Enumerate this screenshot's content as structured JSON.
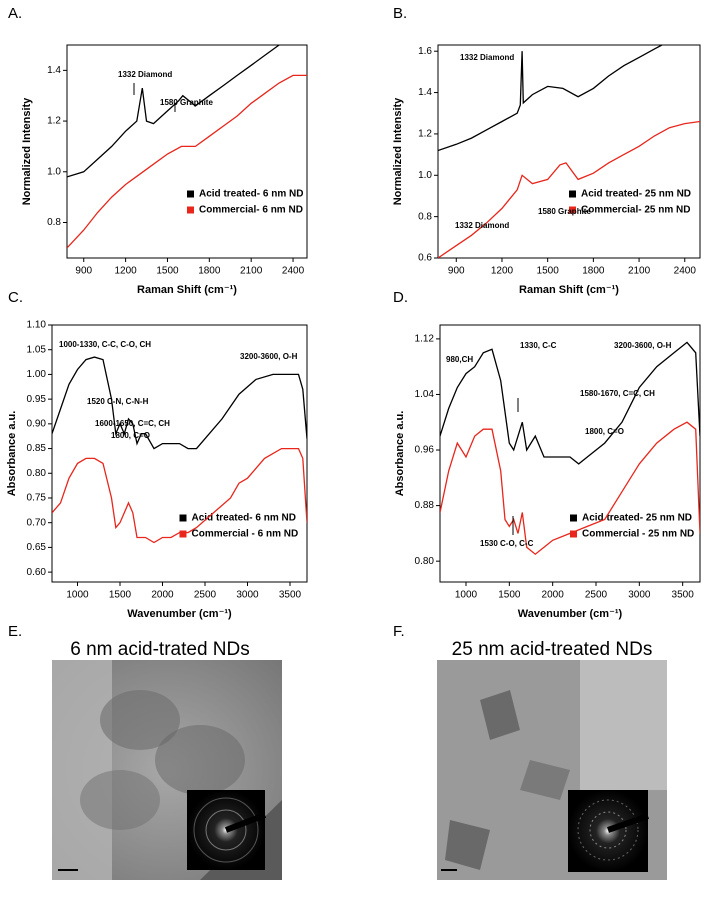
{
  "chart_data": [
    {
      "type": "line",
      "label": "A.",
      "xlabel": "Raman Shift (cm⁻¹)",
      "ylabel": "Normalized Intensity",
      "xlim": [
        780,
        2500
      ],
      "xticks": [
        900,
        1200,
        1500,
        1800,
        2100,
        2400
      ],
      "ylim": [
        0.66,
        1.5
      ],
      "yticks": [
        {
          "value": 0.8,
          "label": "0.8"
        },
        {
          "value": 1.0,
          "label": "1.0"
        },
        1.2,
        1.4
      ],
      "annotations": [
        "1332 Diamond",
        "1580 Graphite"
      ],
      "series": [
        {
          "name": "Acid treated- 6 nm ND",
          "color": "#000000",
          "x": [
            780,
            900,
            1000,
            1100,
            1200,
            1280,
            1320,
            1350,
            1400,
            1500,
            1580,
            1610,
            1700,
            1800,
            1900,
            2000,
            2100,
            2200,
            2300
          ],
          "values": [
            0.98,
            1.0,
            1.05,
            1.1,
            1.16,
            1.2,
            1.33,
            1.2,
            1.19,
            1.24,
            1.28,
            1.3,
            1.26,
            1.3,
            1.34,
            1.38,
            1.42,
            1.46,
            1.5
          ]
        },
        {
          "name": "Commercial- 6 nm ND",
          "color": "#e8261c",
          "x": [
            780,
            900,
            1000,
            1100,
            1200,
            1300,
            1400,
            1500,
            1600,
            1700,
            1800,
            1900,
            2000,
            2100,
            2200,
            2300,
            2400,
            2500
          ],
          "values": [
            0.7,
            0.77,
            0.84,
            0.9,
            0.95,
            0.99,
            1.03,
            1.07,
            1.1,
            1.1,
            1.14,
            1.18,
            1.22,
            1.27,
            1.31,
            1.35,
            1.38,
            1.38
          ]
        }
      ]
    },
    {
      "type": "line",
      "label": "B.",
      "xlabel": "Raman Shift (cm⁻¹)",
      "ylabel": "Normalized Intensity",
      "xlim": [
        780,
        2500
      ],
      "xticks": [
        900,
        1200,
        1500,
        1800,
        2100,
        2400
      ],
      "ylim": [
        0.6,
        1.63
      ],
      "yticks": [
        0.6,
        0.8,
        {
          "value": 1.0,
          "label": "1.0"
        },
        1.2,
        1.4,
        1.6
      ],
      "annotations": [
        "1332 Diamond",
        "1332 Diamond",
        "1580 Graphite"
      ],
      "series": [
        {
          "name": "Acid treated- 25 nm  ND",
          "color": "#000000",
          "x": [
            780,
            900,
            1000,
            1100,
            1200,
            1300,
            1320,
            1332,
            1340,
            1400,
            1500,
            1600,
            1700,
            1800,
            1900,
            2000,
            2100,
            2200,
            2250
          ],
          "values": [
            1.12,
            1.15,
            1.18,
            1.22,
            1.26,
            1.3,
            1.34,
            1.6,
            1.35,
            1.39,
            1.43,
            1.42,
            1.38,
            1.42,
            1.48,
            1.53,
            1.57,
            1.61,
            1.63
          ]
        },
        {
          "name": "Commercial- 25 nm  ND",
          "color": "#e8261c",
          "x": [
            780,
            900,
            1000,
            1100,
            1200,
            1300,
            1332,
            1400,
            1500,
            1580,
            1620,
            1700,
            1800,
            1900,
            2000,
            2100,
            2200,
            2300,
            2400,
            2500
          ],
          "values": [
            0.6,
            0.66,
            0.71,
            0.77,
            0.84,
            0.93,
            1.0,
            0.96,
            0.98,
            1.05,
            1.06,
            0.98,
            1.01,
            1.06,
            1.1,
            1.14,
            1.19,
            1.23,
            1.25,
            1.26
          ]
        }
      ]
    },
    {
      "type": "line",
      "label": "C.",
      "xlabel": "Wavenumber (cm⁻¹)",
      "ylabel": "Absorbance a.u.",
      "xlim": [
        700,
        3700
      ],
      "xticks": [
        1000,
        1500,
        2000,
        2500,
        3000,
        3500
      ],
      "ylim": [
        0.58,
        1.1
      ],
      "yticks": [
        {
          "value": 0.6,
          "label": "0.60"
        },
        0.65,
        {
          "value": 0.7,
          "label": "0.70"
        },
        0.75,
        {
          "value": 0.8,
          "label": "0.80"
        },
        0.85,
        {
          "value": 0.9,
          "label": "0.90"
        },
        0.95,
        {
          "value": 1.0,
          "label": "1.00"
        },
        1.05,
        {
          "value": 1.1,
          "label": "1.10"
        }
      ],
      "annotations": [
        "1000-1330, C-C, C-O, CH",
        "3200-3600, O-H",
        "1520 C-N, C-N-H",
        "1600-1650, C=C, CH",
        "1800, C=O"
      ],
      "series": [
        {
          "name": "Acid treated- 6 nm ND",
          "color": "#000000",
          "x": [
            700,
            800,
            900,
            1000,
            1100,
            1200,
            1300,
            1400,
            1450,
            1500,
            1550,
            1600,
            1650,
            1700,
            1750,
            1800,
            1900,
            2000,
            2100,
            2200,
            2300,
            2400,
            2500,
            2700,
            2900,
            3100,
            3300,
            3500,
            3600,
            3650,
            3700
          ],
          "values": [
            0.88,
            0.93,
            0.98,
            1.01,
            1.03,
            1.035,
            1.03,
            0.95,
            0.88,
            0.9,
            0.88,
            0.91,
            0.9,
            0.86,
            0.88,
            0.88,
            0.85,
            0.86,
            0.86,
            0.86,
            0.85,
            0.85,
            0.87,
            0.91,
            0.96,
            0.99,
            1.0,
            1.0,
            1.0,
            0.97,
            0.87
          ]
        },
        {
          "name": "Commercial - 6 nm ND",
          "color": "#e8261c",
          "x": [
            700,
            800,
            900,
            1000,
            1100,
            1200,
            1300,
            1400,
            1450,
            1500,
            1550,
            1600,
            1650,
            1700,
            1800,
            1900,
            2000,
            2100,
            2200,
            2300,
            2400,
            2600,
            2800,
            2900,
            3000,
            3200,
            3400,
            3500,
            3600,
            3650,
            3700
          ],
          "values": [
            0.72,
            0.74,
            0.79,
            0.82,
            0.83,
            0.83,
            0.82,
            0.75,
            0.69,
            0.7,
            0.72,
            0.74,
            0.72,
            0.67,
            0.67,
            0.66,
            0.67,
            0.67,
            0.68,
            0.68,
            0.69,
            0.72,
            0.75,
            0.78,
            0.79,
            0.83,
            0.85,
            0.85,
            0.85,
            0.83,
            0.7
          ]
        }
      ]
    },
    {
      "type": "line",
      "label": "D.",
      "xlabel": "Wavenumber (cm⁻¹)",
      "ylabel": "Absorbance a.u.",
      "xlim": [
        700,
        3700
      ],
      "xticks": [
        1000,
        1500,
        2000,
        2500,
        3000,
        3500
      ],
      "ylim": [
        0.77,
        1.14
      ],
      "yticks": [
        {
          "value": 0.8,
          "label": "0.80"
        },
        0.88,
        0.96,
        1.04,
        1.12
      ],
      "annotations": [
        "980,CH",
        "1330, C-C",
        "1580-1670, C=C, CH",
        "1800, C=O",
        "3200-3600, O-H",
        "1530 C-O, C-C"
      ],
      "series": [
        {
          "name": "Acid treated- 25 nm ND",
          "color": "#000000",
          "x": [
            700,
            800,
            900,
            1000,
            1100,
            1200,
            1300,
            1400,
            1500,
            1550,
            1600,
            1650,
            1700,
            1800,
            1900,
            2000,
            2100,
            2200,
            2300,
            2400,
            2600,
            2800,
            3000,
            3200,
            3400,
            3550,
            3650,
            3700
          ],
          "values": [
            0.98,
            1.02,
            1.05,
            1.07,
            1.08,
            1.1,
            1.105,
            1.06,
            0.97,
            0.96,
            0.98,
            1.0,
            0.96,
            0.98,
            0.95,
            0.95,
            0.95,
            0.95,
            0.94,
            0.95,
            0.97,
            1.0,
            1.05,
            1.08,
            1.1,
            1.115,
            1.1,
            0.98
          ]
        },
        {
          "name": "Commercial - 25 nm ND",
          "color": "#e8261c",
          "x": [
            700,
            800,
            900,
            1000,
            1100,
            1200,
            1300,
            1400,
            1450,
            1500,
            1550,
            1600,
            1650,
            1700,
            1800,
            1900,
            2000,
            2200,
            2400,
            2600,
            2800,
            3000,
            3200,
            3400,
            3550,
            3650,
            3700
          ],
          "values": [
            0.87,
            0.93,
            0.97,
            0.95,
            0.98,
            0.99,
            0.99,
            0.93,
            0.86,
            0.85,
            0.86,
            0.84,
            0.87,
            0.82,
            0.81,
            0.82,
            0.83,
            0.84,
            0.85,
            0.86,
            0.9,
            0.94,
            0.97,
            0.99,
            1.0,
            0.99,
            0.84
          ]
        }
      ]
    }
  ],
  "images": [
    {
      "label": "E.",
      "title": "6 nm acid-trated NDs"
    },
    {
      "label": "F.",
      "title": "25 nm acid-treated NDs"
    }
  ]
}
